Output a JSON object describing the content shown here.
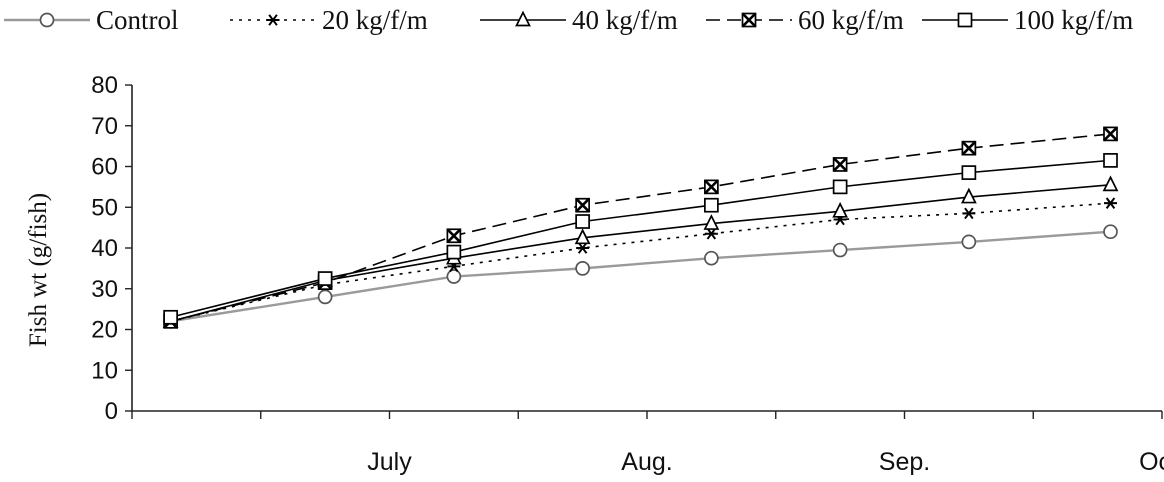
{
  "chart_data": {
    "type": "line",
    "title": "",
    "xlabel": "",
    "ylabel": "Fish wt (g/fish)",
    "ylim": [
      0,
      80
    ],
    "yticks": [
      "0",
      "10",
      "20",
      "30",
      "40",
      "50",
      "60",
      "70",
      "80"
    ],
    "x_tick_labels": [
      "July",
      "Aug.",
      "Sep.",
      "Oct."
    ],
    "x_tick_label_positions": [
      2,
      4,
      6,
      8
    ],
    "x": [
      0.3,
      1.5,
      2.5,
      3.5,
      4.5,
      5.5,
      6.5,
      7.6
    ],
    "grid": false,
    "legend_position": "top",
    "series": [
      {
        "name": "Control",
        "marker": "circle",
        "line_style": "solid",
        "color": "#9a9a9a",
        "values": [
          22,
          28,
          33,
          35,
          37.5,
          39.5,
          41.5,
          44
        ]
      },
      {
        "name": "20 kg/f/m",
        "marker": "asterisk",
        "line_style": "dotted",
        "color": "#000000",
        "values": [
          22,
          31,
          35.5,
          40,
          43.5,
          47,
          48.5,
          51
        ]
      },
      {
        "name": "40 kg/f/m",
        "marker": "triangle",
        "line_style": "solid",
        "color": "#000000",
        "values": [
          22,
          32,
          37.5,
          42.5,
          46,
          49,
          52.5,
          55.5
        ]
      },
      {
        "name": "60 kg/f/m",
        "marker": "crossed-square",
        "line_style": "dashed",
        "color": "#000000",
        "values": [
          22,
          31.5,
          43,
          50.5,
          55,
          60.5,
          64.5,
          68
        ]
      },
      {
        "name": "100 kg/f/m",
        "marker": "square",
        "line_style": "solid",
        "color": "#000000",
        "values": [
          23,
          32.5,
          39,
          46.5,
          50.5,
          55,
          58.5,
          61.5
        ]
      }
    ]
  }
}
